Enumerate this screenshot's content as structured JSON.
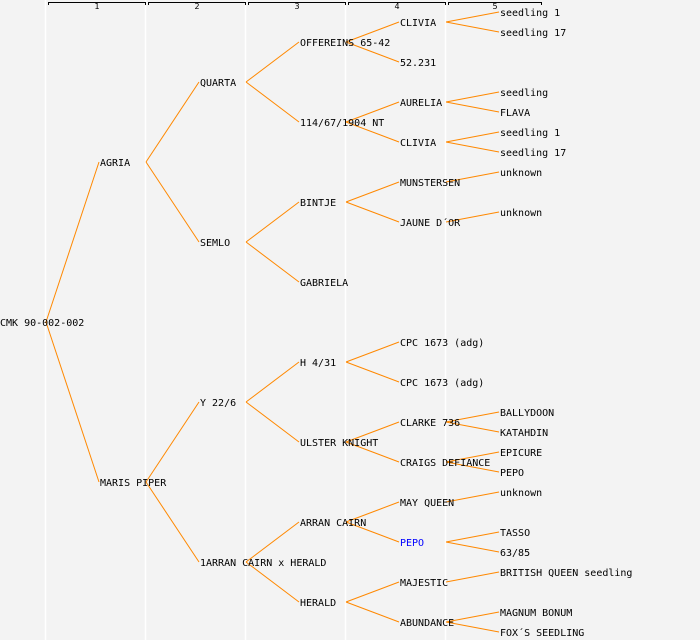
{
  "header": {
    "generations": [
      "1",
      "2",
      "3",
      "4",
      "5"
    ]
  },
  "colors": {
    "line": "#ff8800",
    "text": "#000000",
    "highlight": "#0000ff",
    "background": "#f3f3f3"
  },
  "tree": {
    "name": "CMK 90-002-002",
    "children": [
      {
        "name": "AGRIA",
        "children": [
          {
            "name": "QUARTA",
            "children": [
              {
                "name": "OFFEREINS 65-42",
                "children": [
                  {
                    "name": "CLIVIA",
                    "children": [
                      {
                        "name": "seedling 1"
                      },
                      {
                        "name": "seedling 17"
                      }
                    ]
                  },
                  {
                    "name": "52.231"
                  }
                ]
              },
              {
                "name": "114/67/1904 NT",
                "children": [
                  {
                    "name": "AURELIA",
                    "children": [
                      {
                        "name": "seedling"
                      },
                      {
                        "name": "FLAVA"
                      }
                    ]
                  },
                  {
                    "name": "CLIVIA",
                    "children": [
                      {
                        "name": "seedling 1"
                      },
                      {
                        "name": "seedling 17"
                      }
                    ]
                  }
                ]
              }
            ]
          },
          {
            "name": "SEMLO",
            "children": [
              {
                "name": "BINTJE",
                "children": [
                  {
                    "name": "MUNSTERSEN",
                    "children": [
                      {
                        "name": "unknown"
                      },
                      null
                    ]
                  },
                  {
                    "name": "JAUNE D´OR",
                    "children": [
                      {
                        "name": "unknown"
                      },
                      null
                    ]
                  }
                ]
              },
              {
                "name": "GABRIELA"
              }
            ]
          }
        ]
      },
      {
        "name": "MARIS PIPER",
        "children": [
          {
            "name": "Y 22/6",
            "children": [
              {
                "name": "H 4/31",
                "children": [
                  {
                    "name": "CPC 1673 (adg)"
                  },
                  {
                    "name": "CPC 1673 (adg)"
                  }
                ]
              },
              {
                "name": "ULSTER KNIGHT",
                "children": [
                  {
                    "name": "CLARKE 736",
                    "children": [
                      {
                        "name": "BALLYDOON"
                      },
                      {
                        "name": "KATAHDIN"
                      }
                    ]
                  },
                  {
                    "name": "CRAIGS DEFIANCE",
                    "children": [
                      {
                        "name": "EPICURE"
                      },
                      {
                        "name": "PEPO"
                      }
                    ]
                  }
                ]
              }
            ]
          },
          {
            "name": "1ARRAN CAIRN x HERALD",
            "children": [
              {
                "name": "ARRAN CAIRN",
                "children": [
                  {
                    "name": "MAY QUEEN",
                    "children": [
                      {
                        "name": "unknown"
                      },
                      null
                    ]
                  },
                  {
                    "name": "PEPO",
                    "highlight": true,
                    "children": [
                      {
                        "name": "TASSO"
                      },
                      {
                        "name": "63/85"
                      }
                    ]
                  }
                ]
              },
              {
                "name": "HERALD",
                "children": [
                  {
                    "name": "MAJESTIC",
                    "children": [
                      {
                        "name": "BRITISH QUEEN seedling"
                      },
                      null
                    ]
                  },
                  {
                    "name": "ABUNDANCE",
                    "children": [
                      {
                        "name": "MAGNUM BONUM"
                      },
                      {
                        "name": "FOX´S SEEDLING"
                      }
                    ]
                  }
                ]
              }
            ]
          }
        ]
      }
    ]
  }
}
